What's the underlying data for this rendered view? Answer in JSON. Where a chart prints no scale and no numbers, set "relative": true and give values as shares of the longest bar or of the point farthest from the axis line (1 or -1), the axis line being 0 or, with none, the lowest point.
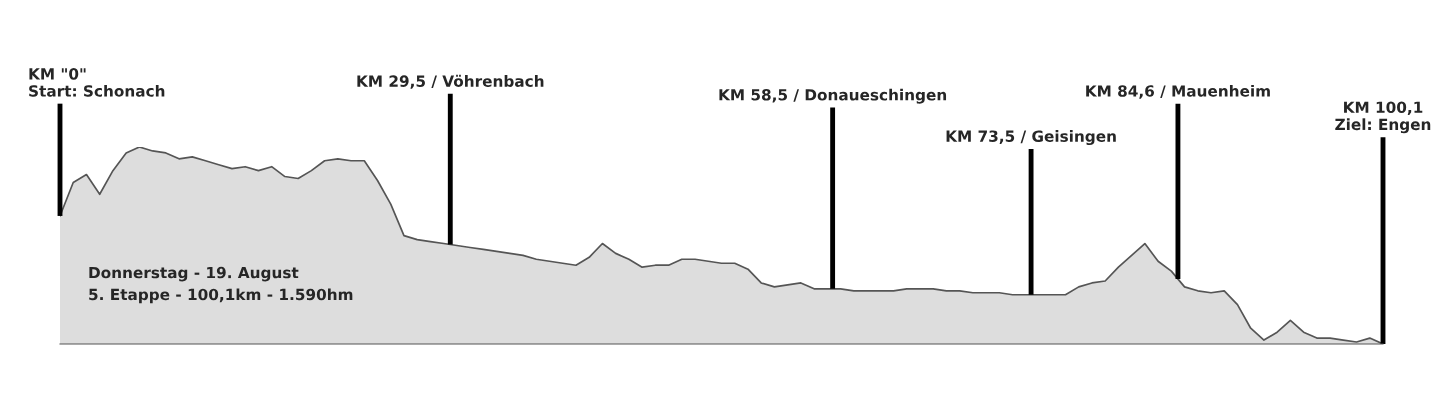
{
  "chart_data": {
    "type": "area",
    "relative": true,
    "color": "#555555",
    "categories": [
      null,
      null,
      null,
      null,
      null,
      null,
      null,
      null,
      null,
      null,
      null,
      null,
      null,
      null,
      null,
      null,
      null,
      null,
      null,
      null,
      null,
      null,
      null,
      null,
      null,
      null,
      null,
      null,
      null,
      null,
      null,
      null,
      null,
      null,
      null,
      null,
      null,
      null,
      null,
      null,
      null,
      null,
      null,
      null,
      null,
      null,
      null,
      null,
      null,
      null,
      null,
      null,
      null,
      null,
      null,
      null,
      null,
      null,
      null,
      null,
      null,
      null,
      null,
      null,
      null,
      null,
      null,
      null,
      null,
      null,
      null,
      null,
      null,
      null,
      null,
      null,
      null,
      null,
      null,
      null,
      null,
      null,
      null,
      null,
      null,
      null,
      null,
      null,
      null,
      null,
      null,
      null,
      null,
      null,
      null,
      null,
      null,
      null,
      null,
      null,
      null
    ],
    "values": [
      0.65,
      0.82,
      0.86,
      0.76,
      0.88,
      0.97,
      1,
      0.98,
      0.97,
      0.94,
      0.95,
      0.93,
      0.91,
      0.89,
      0.9,
      0.88,
      0.9,
      0.85,
      0.84,
      0.88,
      0.93,
      0.94,
      0.93,
      0.93,
      0.83,
      0.71,
      0.55,
      0.53,
      0.52,
      0.51,
      0.5,
      0.49,
      0.48,
      0.47,
      0.46,
      0.45,
      0.43,
      0.42,
      0.41,
      0.4,
      0.44,
      0.51,
      0.46,
      0.43,
      0.39,
      0.4,
      0.4,
      0.43,
      0.43,
      0.42,
      0.41,
      0.41,
      0.38,
      0.31,
      0.29,
      0.3,
      0.31,
      0.28,
      0.28,
      0.28,
      0.27,
      0.27,
      0.27,
      0.27,
      0.28,
      0.28,
      0.28,
      0.27,
      0.27,
      0.26,
      0.26,
      0.26,
      0.25,
      0.25,
      0.25,
      0.25,
      0.25,
      0.29,
      0.31,
      0.32,
      0.39,
      0.45,
      0.51,
      0.42,
      0.37,
      0.29,
      0.27,
      0.26,
      0.27,
      0.2,
      0.08,
      0.02,
      0.06,
      0.12,
      0.06,
      0.03,
      0.03,
      0.02,
      0.01,
      0.03,
      0
    ],
    "annotations": [
      "KM \"0\"\nStart: Schonach",
      "KM 29,5 / Vöhrenbach",
      "KM 58,5 / Donaueschingen",
      "KM 73,5 / Geisingen",
      "KM 84,6 / Mauenheim",
      "KM 100,1\nZiel: Engen",
      "Donnerstag - 19. August\n5. Etappe - 100,1km - 1.590hm"
    ]
  }
}
